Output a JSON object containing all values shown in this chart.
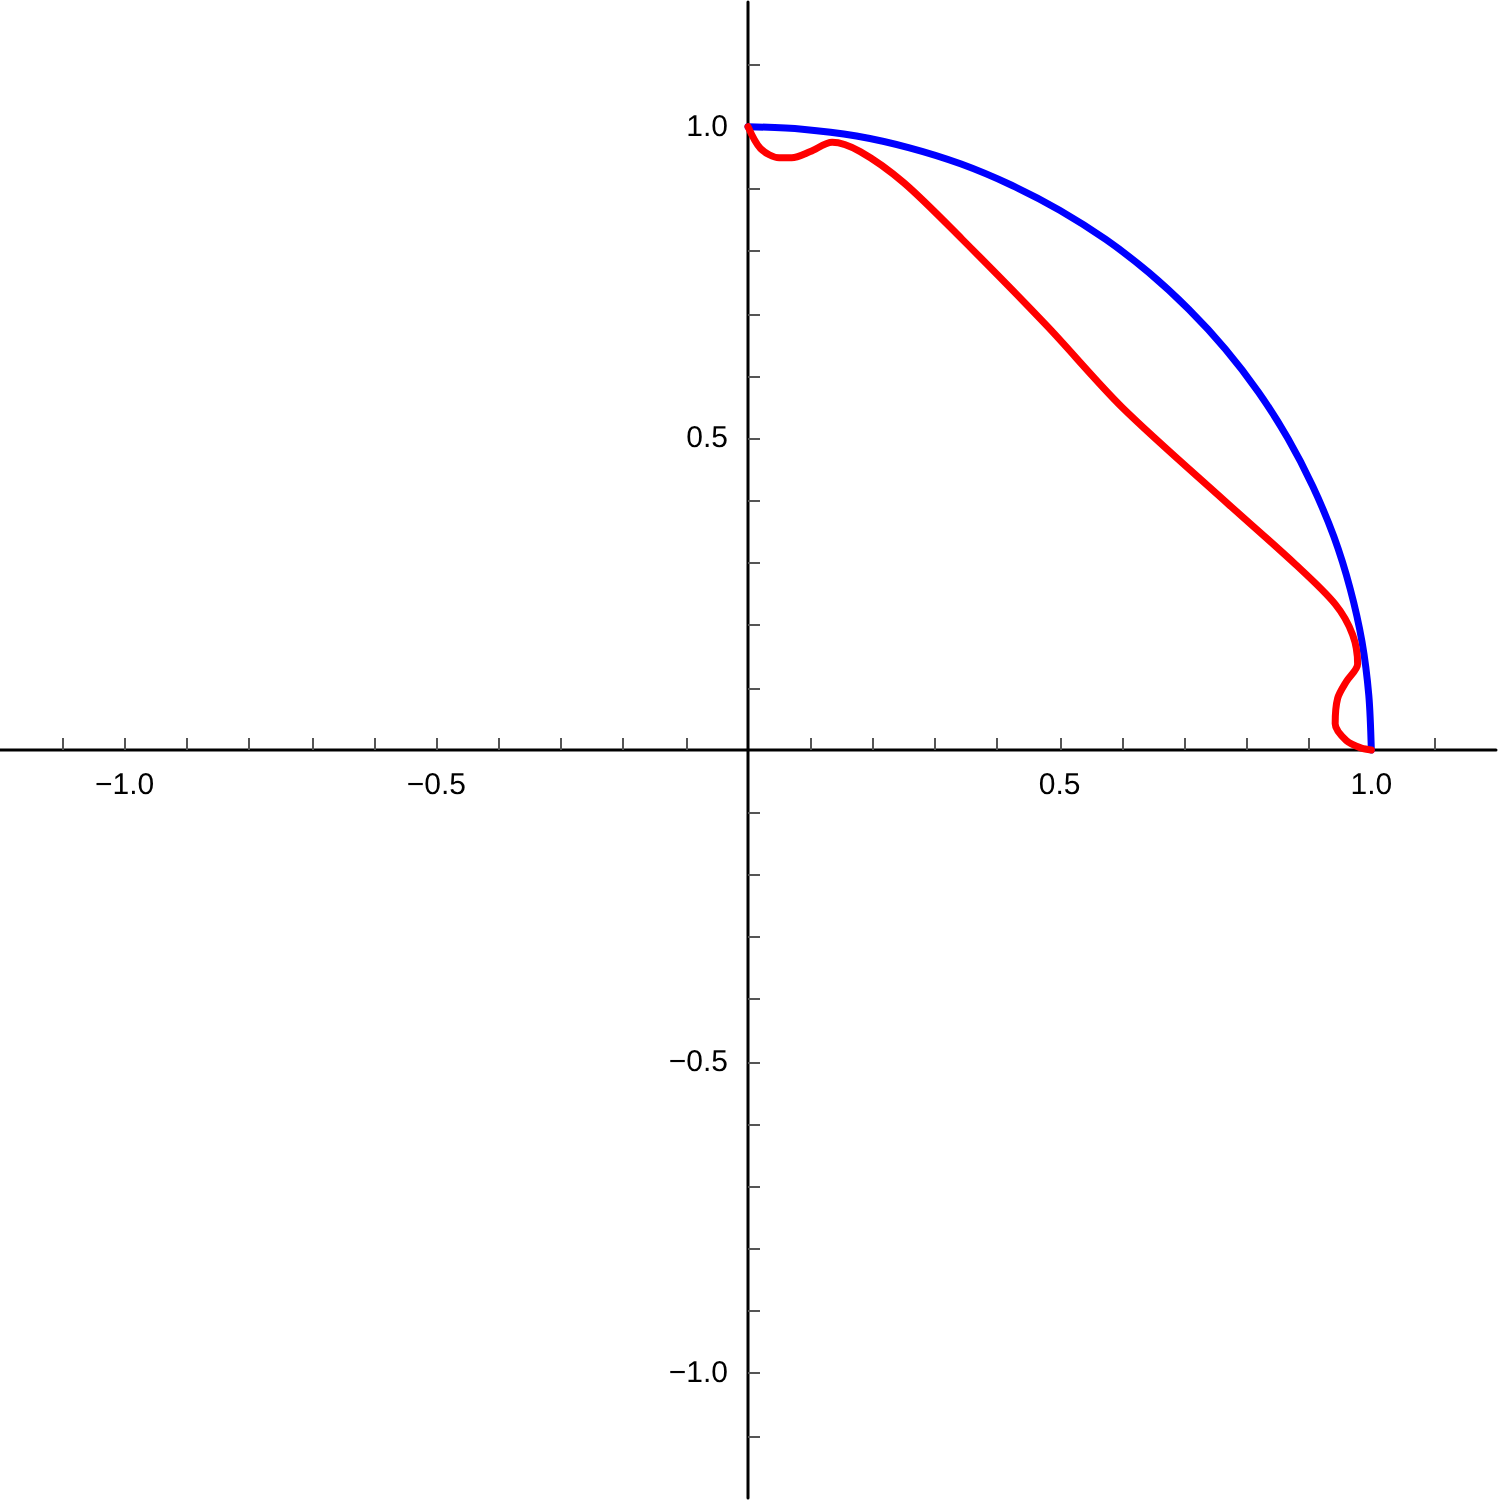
{
  "chart_data": {
    "type": "line",
    "xlim": [
      -1.2,
      1.2
    ],
    "ylim": [
      -1.2,
      1.2
    ],
    "xticks": [
      {
        "value": -1.1,
        "label": null
      },
      {
        "value": -1,
        "label": "−1.0"
      },
      {
        "value": -0.9,
        "label": null
      },
      {
        "value": -0.8,
        "label": null
      },
      {
        "value": -0.7,
        "label": null
      },
      {
        "value": -0.6,
        "label": null
      },
      {
        "value": -0.5,
        "label": "−0.5"
      },
      {
        "value": -0.4,
        "label": null
      },
      {
        "value": -0.3,
        "label": null
      },
      {
        "value": -0.2,
        "label": null
      },
      {
        "value": -0.1,
        "label": null
      },
      {
        "value": 0.1,
        "label": null
      },
      {
        "value": 0.2,
        "label": null
      },
      {
        "value": 0.3,
        "label": null
      },
      {
        "value": 0.4,
        "label": null
      },
      {
        "value": 0.5,
        "label": "0.5"
      },
      {
        "value": 0.6,
        "label": null
      },
      {
        "value": 0.7,
        "label": null
      },
      {
        "value": 0.8,
        "label": null
      },
      {
        "value": 0.9,
        "label": null
      },
      {
        "value": 1,
        "label": "1.0"
      },
      {
        "value": 1.1,
        "label": null
      }
    ],
    "yticks": [
      {
        "value": -1.1,
        "label": null
      },
      {
        "value": -1,
        "label": "−1.0"
      },
      {
        "value": -0.9,
        "label": null
      },
      {
        "value": -0.8,
        "label": null
      },
      {
        "value": -0.7,
        "label": null
      },
      {
        "value": -0.6,
        "label": null
      },
      {
        "value": -0.5,
        "label": "−0.5"
      },
      {
        "value": -0.4,
        "label": null
      },
      {
        "value": -0.3,
        "label": null
      },
      {
        "value": -0.2,
        "label": null
      },
      {
        "value": -0.1,
        "label": null
      },
      {
        "value": 0.1,
        "label": null
      },
      {
        "value": 0.2,
        "label": null
      },
      {
        "value": 0.3,
        "label": null
      },
      {
        "value": 0.4,
        "label": null
      },
      {
        "value": 0.5,
        "label": "0.5"
      },
      {
        "value": 0.6,
        "label": null
      },
      {
        "value": 0.7,
        "label": null
      },
      {
        "value": 0.8,
        "label": null
      },
      {
        "value": 0.9,
        "label": null
      },
      {
        "value": 1,
        "label": "1.0"
      },
      {
        "value": 1.1,
        "label": null
      }
    ],
    "grid": false,
    "marker": "none",
    "line_style": "solid",
    "series": [
      {
        "color": "#0000ff",
        "x": [
          1,
          0.996,
          0.985,
          0.966,
          0.94,
          0.906,
          0.866,
          0.819,
          0.766,
          0.707,
          0.643,
          0.574,
          0.5,
          0.423,
          0.342,
          0.259,
          0.174,
          0.087,
          0
        ],
        "values": [
          0,
          0.087,
          0.174,
          0.259,
          0.342,
          0.423,
          0.5,
          0.574,
          0.643,
          0.707,
          0.766,
          0.819,
          0.866,
          0.906,
          0.94,
          0.966,
          0.985,
          0.996,
          1
        ]
      },
      {
        "color": "#ff0000",
        "x": [
          0,
          0.02,
          0.05,
          0.07,
          0.1,
          0.135,
          0.18,
          0.25,
          0.343,
          0.48,
          0.6,
          0.77,
          0.878,
          0.942,
          0.97,
          0.978,
          0.96,
          0.946,
          0.942,
          0.96,
          0.984,
          1
        ],
        "values": [
          1,
          0.965,
          0.95,
          0.95,
          0.96,
          0.975,
          0.96,
          0.91,
          0.82,
          0.68,
          0.55,
          0.395,
          0.298,
          0.234,
          0.185,
          0.138,
          0.11,
          0.083,
          0.042,
          0.015,
          0.003,
          0
        ]
      }
    ]
  }
}
